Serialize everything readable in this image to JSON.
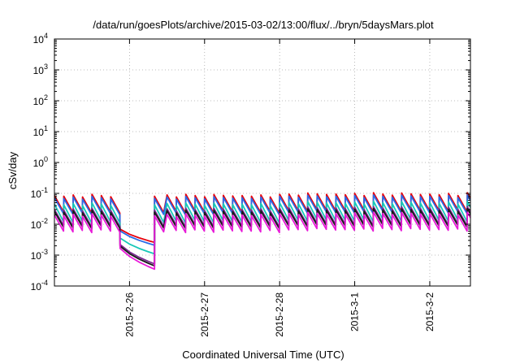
{
  "chart_data": {
    "type": "line",
    "title": "/data/run/goesPlots/archive/2015-03-02/13:00/flux/../bryn/5daysMars.plot",
    "xlabel": "Coordinated Universal Time (UTC)",
    "ylabel": "cSv/day",
    "yscale": "log",
    "ylim": [
      0.0001,
      10000
    ],
    "xlim": [
      "2015-02-25 00:00",
      "2015-03-02 13:00"
    ],
    "y_ticks": [
      {
        "base": "10",
        "exp": "-4"
      },
      {
        "base": "10",
        "exp": "-3"
      },
      {
        "base": "10",
        "exp": "-2"
      },
      {
        "base": "10",
        "exp": "-1"
      },
      {
        "base": "10",
        "exp": "0"
      },
      {
        "base": "10",
        "exp": "1"
      },
      {
        "base": "10",
        "exp": "2"
      },
      {
        "base": "10",
        "exp": "3"
      },
      {
        "base": "10",
        "exp": "4"
      }
    ],
    "x_ticks": [
      "2015-2-26",
      "2015-2-27",
      "2015-2-28",
      "2015-3-1",
      "2015-3-2"
    ],
    "grid": true,
    "legend": "none",
    "series": [
      {
        "color": "#e8000b",
        "peak": 0.085,
        "trough": 0.025,
        "dip_end": 0.0026,
        "dip_start": 0.012
      },
      {
        "color": "#2a6ae8",
        "peak": 0.072,
        "trough": 0.022,
        "dip_end": 0.0021,
        "dip_start": 0.011
      },
      {
        "color": "#18c8b8",
        "peak": 0.045,
        "trough": 0.012,
        "dip_end": 0.0011,
        "dip_start": 0.007
      },
      {
        "color": "#7a2890",
        "peak": 0.03,
        "trough": 0.009,
        "dip_end": 0.00052,
        "dip_start": 0.005
      },
      {
        "color": "#1a1a1a",
        "peak": 0.026,
        "trough": 0.008,
        "dip_end": 0.00045,
        "dip_start": 0.0045
      },
      {
        "color": "#e81ad8",
        "peak": 0.02,
        "trough": 0.006,
        "dip_end": 0.00035,
        "dip_start": 0.004
      }
    ],
    "pattern": {
      "spike_period_hours": 3,
      "dropout_start": "2015-02-25 19:20",
      "dropout_end": "2015-02-26 08:00"
    }
  }
}
